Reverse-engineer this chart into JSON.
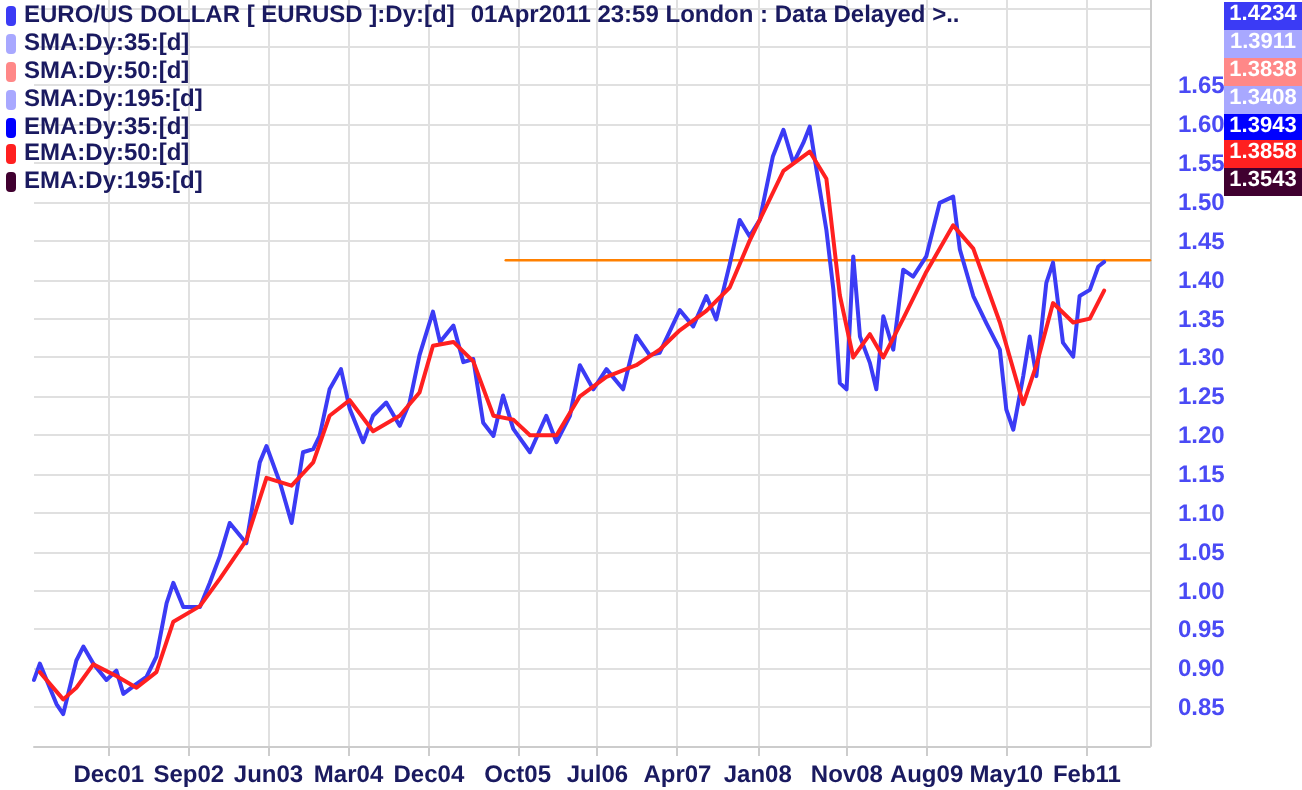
{
  "chart_data": {
    "type": "line",
    "title": "01Apr2011 23:59 London : Data Delayed >..",
    "legend": "top left",
    "grid": true,
    "marker": "none",
    "line_style": "solid",
    "xlim": [
      "2001-03-20",
      "2011-09-05"
    ],
    "xticks": [
      {
        "value": "2001-12-01",
        "label": "Dec01"
      },
      {
        "value": "2002-09-01",
        "label": "Sep02"
      },
      {
        "value": "2003-06-01",
        "label": "Jun03"
      },
      {
        "value": "2004-03-01",
        "label": "Mar04"
      },
      {
        "value": "2004-12-01",
        "label": "Dec04"
      },
      {
        "value": "2005-10-01",
        "label": "Oct05"
      },
      {
        "value": "2006-07-01",
        "label": "Jul06"
      },
      {
        "value": "2007-04-01",
        "label": "Apr07"
      },
      {
        "value": "2008-01-01",
        "label": "Jan08"
      },
      {
        "value": "2008-11-01",
        "label": "Nov08"
      },
      {
        "value": "2009-08-01",
        "label": "Aug09"
      },
      {
        "value": "2010-05-01",
        "label": "May10"
      },
      {
        "value": "2011-02-01",
        "label": "Feb11"
      }
    ],
    "ylim": [
      0.8,
      1.76
    ],
    "yticks": [
      0.85,
      {
        "value": 0.9,
        "label": "0.90"
      },
      0.95,
      {
        "value": 1.0,
        "label": "1.00"
      },
      1.05,
      {
        "value": 1.1,
        "label": "1.10"
      },
      1.15,
      {
        "value": 1.2,
        "label": "1.20"
      },
      1.25,
      {
        "value": 1.3,
        "label": "1.30"
      },
      1.35,
      {
        "value": 1.4,
        "label": "1.40"
      },
      1.45,
      {
        "value": 1.5,
        "label": "1.50"
      },
      1.55,
      {
        "value": 1.6,
        "label": "1.60"
      },
      1.65,
      {
        "value": 1.7,
        "label": null
      },
      {
        "value": 1.75,
        "label": null
      }
    ],
    "annotations": [
      "SMA:Dy:35:[d]",
      "SMA:Dy:50:[d]",
      "SMA:Dy:195:[d]",
      "EMA:Dy:35:[d]",
      "EMA:Dy:195:[d]",
      "1.4234",
      "1.3911",
      "1.3838",
      "1.3408",
      "1.3943",
      "1.3858",
      "1.3543"
    ],
    "series": [
      {
        "name": "EURO/US DOLLAR [ EURUSD ]:Dy:[d]",
        "color": "#3b3bf5",
        "x": [
          "2001-03-20",
          "2001-04-09",
          "2001-06-05",
          "2001-06-28",
          "2001-08-12",
          "2001-09-05",
          "2001-10-09",
          "2001-11-23",
          "2001-12-27",
          "2002-01-20",
          "2002-03-06",
          "2002-04-09",
          "2002-05-13",
          "2002-06-17",
          "2002-07-10",
          "2002-08-13",
          "2002-10-09",
          "2002-11-12",
          "2002-12-16",
          "2003-01-19",
          "2003-03-17",
          "2003-05-02",
          "2003-05-25",
          "2003-07-10",
          "2003-08-19",
          "2003-09-27",
          "2003-11-01",
          "2003-11-23",
          "2003-12-27",
          "2004-02-04",
          "2004-03-05",
          "2004-04-20",
          "2004-05-24",
          "2004-07-08",
          "2004-08-23",
          "2004-09-26",
          "2004-10-30",
          "2004-12-15",
          "2005-01-08",
          "2005-02-23",
          "2005-03-29",
          "2005-05-02",
          "2005-06-05",
          "2005-07-10",
          "2005-08-12",
          "2005-09-16",
          "2005-11-12",
          "2006-01-07",
          "2006-02-11",
          "2006-03-29",
          "2006-05-02",
          "2006-06-17",
          "2006-08-01",
          "2006-09-27",
          "2006-11-11",
          "2006-12-27",
          "2007-01-30",
          "2007-04-09",
          "2007-05-25",
          "2007-07-09",
          "2007-08-12",
          "2007-09-27",
          "2007-10-31",
          "2007-12-04",
          "2008-01-08",
          "2008-02-22",
          "2008-03-29",
          "2008-05-02",
          "2008-06-05",
          "2008-06-27",
          "2008-07-20",
          "2008-08-23",
          "2008-09-16",
          "2008-10-08",
          "2008-10-31",
          "2008-11-23",
          "2008-12-16",
          "2009-01-19",
          "2009-02-10",
          "2009-03-06",
          "2009-04-09",
          "2009-05-13",
          "2009-06-16",
          "2009-07-31",
          "2009-09-15",
          "2009-10-31",
          "2009-11-23",
          "2010-01-08",
          "2010-02-22",
          "2010-04-09",
          "2010-05-01",
          "2010-05-25",
          "2010-06-28",
          "2010-07-20",
          "2010-08-12",
          "2010-09-15",
          "2010-10-08",
          "2010-11-11",
          "2010-12-16",
          "2011-01-07",
          "2011-02-11",
          "2011-03-12",
          "2011-04-01"
        ],
        "values": [
          0.885,
          0.906,
          0.854,
          0.841,
          0.91,
          0.928,
          0.906,
          0.885,
          0.897,
          0.867,
          0.88,
          0.889,
          0.915,
          0.984,
          1.01,
          0.979,
          0.979,
          1.01,
          1.044,
          1.087,
          1.061,
          1.165,
          1.186,
          1.139,
          1.087,
          1.178,
          1.182,
          1.199,
          1.259,
          1.285,
          1.234,
          1.191,
          1.225,
          1.242,
          1.212,
          1.242,
          1.303,
          1.359,
          1.32,
          1.341,
          1.294,
          1.298,
          1.216,
          1.199,
          1.251,
          1.208,
          1.178,
          1.225,
          1.191,
          1.225,
          1.29,
          1.259,
          1.285,
          1.259,
          1.328,
          1.303,
          1.306,
          1.361,
          1.34,
          1.379,
          1.349,
          1.42,
          1.477,
          1.456,
          1.477,
          1.559,
          1.593,
          1.55,
          1.576,
          1.597,
          1.542,
          1.464,
          1.387,
          1.267,
          1.259,
          1.43,
          1.327,
          1.293,
          1.259,
          1.353,
          1.31,
          1.413,
          1.404,
          1.43,
          1.499,
          1.507,
          1.439,
          1.379,
          1.344,
          1.31,
          1.233,
          1.207,
          1.276,
          1.327,
          1.276,
          1.396,
          1.422,
          1.319,
          1.301,
          1.379,
          1.387,
          1.417,
          1.423
        ]
      },
      {
        "name": "EMA:Dy:50:[d]",
        "color": "#ff2020",
        "x": [
          "2001-04-09",
          "2001-06-28",
          "2001-08-12",
          "2001-10-09",
          "2001-12-27",
          "2002-03-06",
          "2002-05-13",
          "2002-07-10",
          "2002-10-09",
          "2002-12-16",
          "2003-03-17",
          "2003-05-25",
          "2003-08-19",
          "2003-11-01",
          "2003-12-27",
          "2004-03-05",
          "2004-05-24",
          "2004-08-23",
          "2004-10-30",
          "2004-12-15",
          "2005-02-23",
          "2005-05-02",
          "2005-07-10",
          "2005-09-16",
          "2005-11-12",
          "2006-02-11",
          "2006-05-02",
          "2006-08-01",
          "2006-11-11",
          "2007-01-30",
          "2007-04-09",
          "2007-07-09",
          "2007-09-27",
          "2007-12-04",
          "2008-03-29",
          "2008-06-27",
          "2008-08-23",
          "2008-10-08",
          "2008-11-23",
          "2009-01-19",
          "2009-03-06",
          "2009-05-13",
          "2009-07-31",
          "2009-10-31",
          "2010-01-08",
          "2010-04-09",
          "2010-06-28",
          "2010-08-12",
          "2010-10-08",
          "2010-12-16",
          "2011-02-11",
          "2011-04-01"
        ],
        "values": [
          0.895,
          0.86,
          0.875,
          0.905,
          0.89,
          0.875,
          0.895,
          0.96,
          0.98,
          1.015,
          1.065,
          1.145,
          1.135,
          1.165,
          1.225,
          1.245,
          1.205,
          1.225,
          1.255,
          1.315,
          1.32,
          1.295,
          1.225,
          1.22,
          1.2,
          1.2,
          1.25,
          1.275,
          1.29,
          1.31,
          1.335,
          1.36,
          1.39,
          1.45,
          1.54,
          1.565,
          1.53,
          1.38,
          1.3,
          1.33,
          1.3,
          1.35,
          1.41,
          1.47,
          1.44,
          1.345,
          1.24,
          1.29,
          1.37,
          1.345,
          1.35,
          1.386
        ]
      },
      {
        "color": "#ff8000",
        "x": [
          "2005-08-21",
          "2011-09-05"
        ],
        "values": [
          1.425,
          1.425
        ]
      }
    ]
  }
}
